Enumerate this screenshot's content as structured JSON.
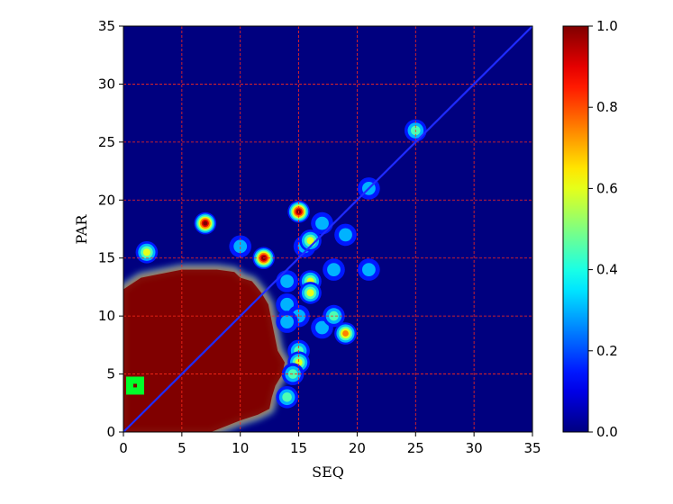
{
  "chart_data": {
    "type": "heatmap",
    "xlabel": "SEQ",
    "ylabel": "PAR",
    "xlim": [
      0,
      35
    ],
    "ylim": [
      0,
      35
    ],
    "xticks": [
      0,
      5,
      10,
      15,
      20,
      25,
      30,
      35
    ],
    "yticks": [
      0,
      5,
      10,
      15,
      20,
      25,
      30,
      35
    ],
    "grid": true,
    "grid_color": "#ff2a1a",
    "colormap": "jet",
    "color_range": [
      0.0,
      1.0
    ],
    "colorbar_ticks": [
      "0.0",
      "0.2",
      "0.4",
      "0.6",
      "0.8",
      "1.0"
    ],
    "diagonal_line": {
      "from": [
        0,
        0
      ],
      "to": [
        35,
        35
      ],
      "color": "#1f2bff"
    },
    "marker": {
      "x": 1,
      "y": 4,
      "shape": "square",
      "color": "#00ff2a"
    },
    "high_region": {
      "value": 1.0,
      "boundary": [
        [
          0,
          0
        ],
        [
          7.5,
          0
        ],
        [
          10,
          1
        ],
        [
          11.5,
          1.5
        ],
        [
          12.5,
          2
        ],
        [
          12.7,
          3
        ],
        [
          13,
          4
        ],
        [
          13.6,
          5
        ],
        [
          13.8,
          6
        ],
        [
          13.2,
          7
        ],
        [
          12.8,
          9
        ],
        [
          12.6,
          10
        ],
        [
          12.4,
          11
        ],
        [
          11.8,
          12
        ],
        [
          11,
          13
        ],
        [
          10,
          13.3
        ],
        [
          9.5,
          13.8
        ],
        [
          8,
          14
        ],
        [
          5,
          14
        ],
        [
          3,
          13.6
        ],
        [
          1.5,
          13.3
        ],
        [
          0,
          12.3
        ]
      ]
    },
    "hotspots": [
      {
        "x": 2,
        "y": 15.5,
        "value": 0.6
      },
      {
        "x": 7,
        "y": 18,
        "value": 1.0
      },
      {
        "x": 10,
        "y": 16,
        "value": 0.35
      },
      {
        "x": 12,
        "y": 15,
        "value": 1.0
      },
      {
        "x": 15,
        "y": 19,
        "value": 1.0
      },
      {
        "x": 15.5,
        "y": 16,
        "value": 0.35
      },
      {
        "x": 16,
        "y": 16.5,
        "value": 0.7
      },
      {
        "x": 17,
        "y": 18,
        "value": 0.3
      },
      {
        "x": 19,
        "y": 17,
        "value": 0.35
      },
      {
        "x": 18,
        "y": 14,
        "value": 0.4
      },
      {
        "x": 16,
        "y": 13,
        "value": 0.7
      },
      {
        "x": 16,
        "y": 12,
        "value": 0.7
      },
      {
        "x": 14,
        "y": 13,
        "value": 0.3
      },
      {
        "x": 14,
        "y": 11,
        "value": 0.3
      },
      {
        "x": 15,
        "y": 10,
        "value": 0.4
      },
      {
        "x": 14,
        "y": 9.5,
        "value": 0.35
      },
      {
        "x": 17,
        "y": 9,
        "value": 0.3
      },
      {
        "x": 18,
        "y": 10,
        "value": 0.45
      },
      {
        "x": 19,
        "y": 8.5,
        "value": 0.8
      },
      {
        "x": 15,
        "y": 7,
        "value": 0.5
      },
      {
        "x": 15,
        "y": 6,
        "value": 0.6
      },
      {
        "x": 14.5,
        "y": 5,
        "value": 0.5
      },
      {
        "x": 14,
        "y": 3,
        "value": 0.45
      },
      {
        "x": 21,
        "y": 21,
        "value": 0.35
      },
      {
        "x": 21,
        "y": 14,
        "value": 0.3
      },
      {
        "x": 25,
        "y": 26,
        "value": 0.55
      }
    ]
  }
}
